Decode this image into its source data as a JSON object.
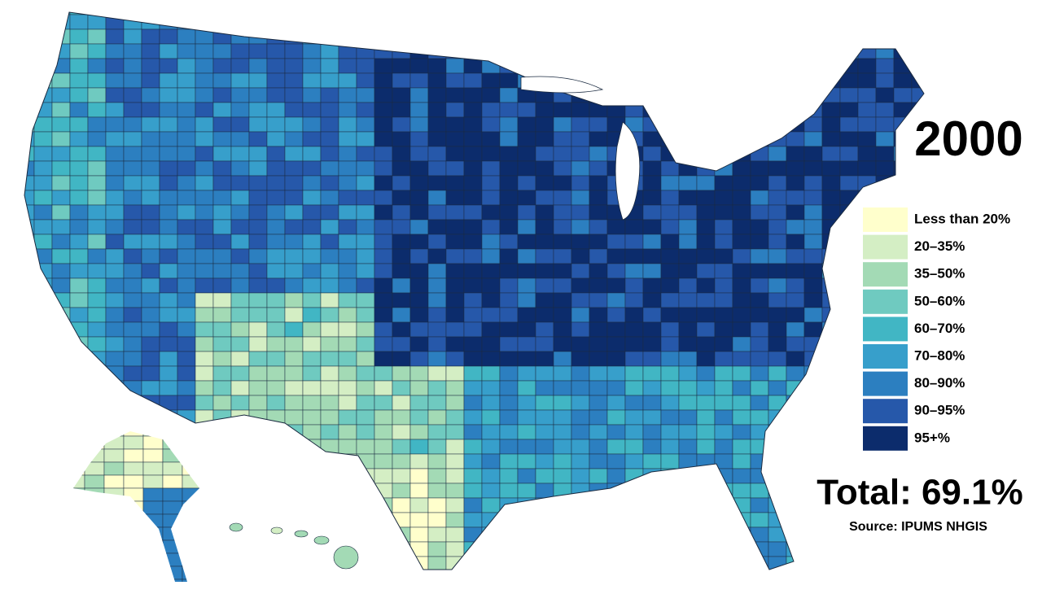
{
  "title": "2000",
  "legend": {
    "items": [
      {
        "label": "Less than 20%",
        "color": "#ffffcc"
      },
      {
        "label": "20–35%",
        "color": "#d4eec4"
      },
      {
        "label": "35–50%",
        "color": "#a3dab5"
      },
      {
        "label": "50–60%",
        "color": "#6fcac0"
      },
      {
        "label": "60–70%",
        "color": "#41b6c4"
      },
      {
        "label": "70–80%",
        "color": "#379fcb"
      },
      {
        "label": "80–90%",
        "color": "#2c7fc0"
      },
      {
        "label": "90–95%",
        "color": "#2658aa"
      },
      {
        "label": "95+%",
        "color": "#0c2c6c"
      }
    ]
  },
  "total": "Total: 69.1%",
  "source": "Source: IPUMS NHGIS"
}
